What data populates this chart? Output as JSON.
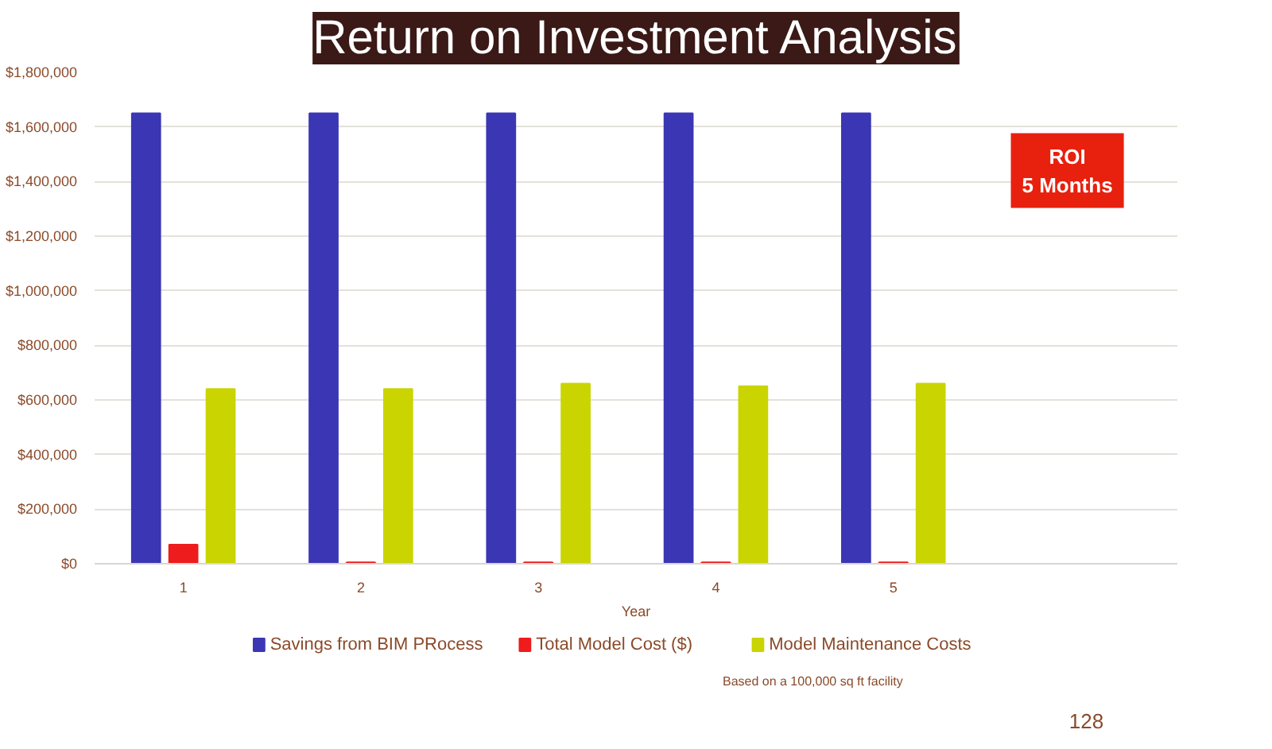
{
  "chart_data": {
    "type": "bar",
    "title": "Return on Investment Analysis",
    "xlabel": "Year",
    "categories": [
      "1",
      "2",
      "3",
      "4",
      "5"
    ],
    "series": [
      {
        "name": "Savings from BIM PRocess",
        "color": "#3b36b4",
        "values": [
          1650000,
          1650000,
          1650000,
          1650000,
          1650000
        ]
      },
      {
        "name": "Total Model Cost ($)",
        "color": "#ee1c1c",
        "values": [
          70000,
          5000,
          5000,
          5000,
          5000
        ]
      },
      {
        "name": "Model Maintenance Costs",
        "color": "#c9d400",
        "values": [
          640000,
          640000,
          660000,
          650000,
          660000
        ]
      }
    ],
    "ylim": [
      0,
      1800000
    ],
    "yticks": [
      {
        "value": 0,
        "label": "$0"
      },
      {
        "value": 200000,
        "label": "$200,000"
      },
      {
        "value": 400000,
        "label": "$400,000"
      },
      {
        "value": 600000,
        "label": "$600,000"
      },
      {
        "value": 800000,
        "label": "$800,000"
      },
      {
        "value": 1000000,
        "label": "$1,000,000"
      },
      {
        "value": 1200000,
        "label": "$1,200,000"
      },
      {
        "value": 1400000,
        "label": "$1,400,000"
      },
      {
        "value": 1600000,
        "label": "$1,600,000"
      },
      {
        "value": 1800000,
        "label": "$1,800,000"
      }
    ],
    "grid": "y",
    "legend": "bottom",
    "annotations": [
      "ROI\n5 Months",
      "Based on a 100,000 sq ft facility",
      "128"
    ]
  }
}
